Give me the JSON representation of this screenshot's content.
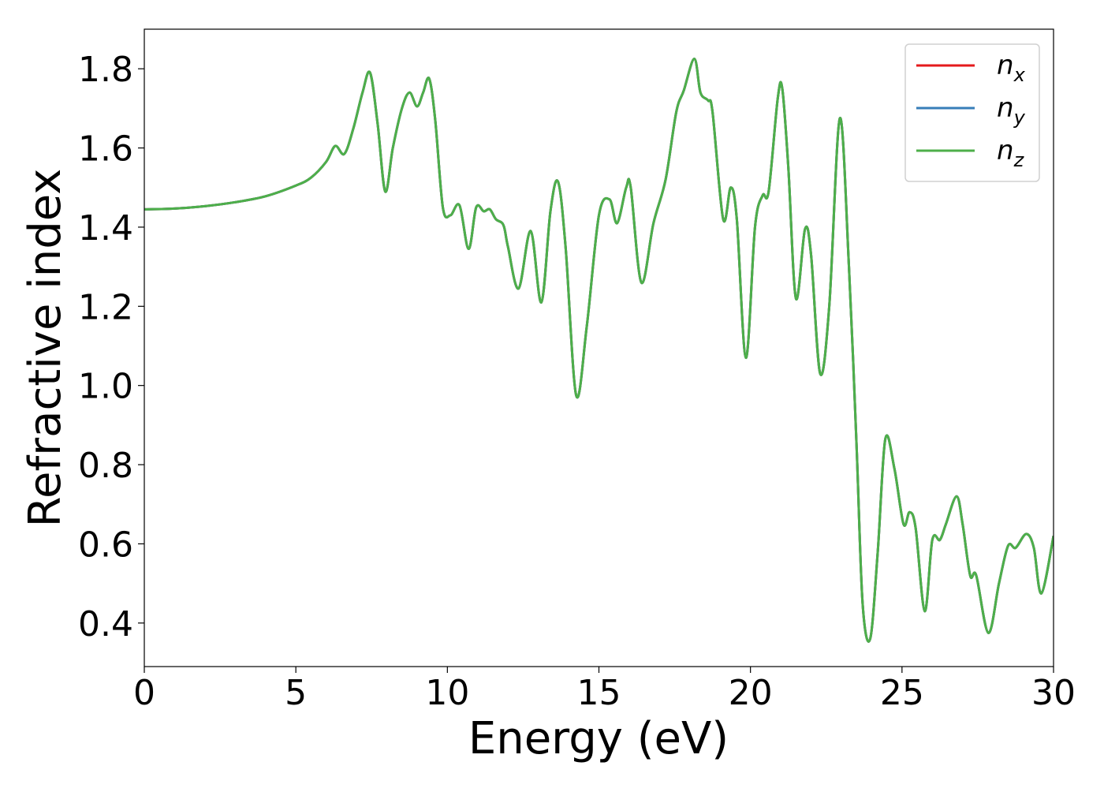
{
  "chart_data": {
    "type": "line",
    "xlabel": "Energy (eV)",
    "ylabel": "Refractive index",
    "xlim": [
      0,
      30
    ],
    "ylim": [
      0.29,
      1.9
    ],
    "x_ticks": [
      0,
      5,
      10,
      15,
      20,
      25,
      30
    ],
    "y_ticks": [
      0.4,
      0.6,
      0.8,
      1.0,
      1.2,
      1.4,
      1.6,
      1.8
    ],
    "grid": false,
    "legend_position": "top-right",
    "series": [
      {
        "name_base": "n",
        "name_sub": "x",
        "color": "#e41a1c"
      },
      {
        "name_base": "n",
        "name_sub": "y",
        "color": "#377eb8"
      },
      {
        "name_base": "n",
        "name_sub": "z",
        "color": "#4daf4a"
      }
    ],
    "curve": {
      "x": [
        0,
        1,
        2,
        3,
        4,
        5,
        5.5,
        6.0,
        6.3,
        6.6,
        6.9,
        7.2,
        7.45,
        7.7,
        7.95,
        8.2,
        8.5,
        8.75,
        9.0,
        9.2,
        9.4,
        9.6,
        9.85,
        10.1,
        10.4,
        10.7,
        10.95,
        11.2,
        11.4,
        11.6,
        11.85,
        12.0,
        12.35,
        12.75,
        13.1,
        13.4,
        13.65,
        13.9,
        14.25,
        14.6,
        15.0,
        15.35,
        15.6,
        15.9,
        16.05,
        16.4,
        16.8,
        17.2,
        17.55,
        17.8,
        18.15,
        18.35,
        18.6,
        18.75,
        19.1,
        19.35,
        19.55,
        19.85,
        20.15,
        20.4,
        20.6,
        20.9,
        21.05,
        21.25,
        21.5,
        21.8,
        22.0,
        22.3,
        22.6,
        22.95,
        23.25,
        23.5,
        23.7,
        23.95,
        24.2,
        24.45,
        24.75,
        25.05,
        25.25,
        25.45,
        25.75,
        26.0,
        26.25,
        26.45,
        26.8,
        27.0,
        27.25,
        27.45,
        27.85,
        28.2,
        28.5,
        28.75,
        29.1,
        29.35,
        29.6,
        30.0
      ],
      "y": [
        1.445,
        1.447,
        1.453,
        1.463,
        1.478,
        1.505,
        1.525,
        1.565,
        1.605,
        1.585,
        1.65,
        1.74,
        1.79,
        1.66,
        1.49,
        1.6,
        1.7,
        1.74,
        1.705,
        1.74,
        1.775,
        1.67,
        1.45,
        1.43,
        1.455,
        1.345,
        1.45,
        1.44,
        1.445,
        1.42,
        1.405,
        1.35,
        1.245,
        1.39,
        1.21,
        1.44,
        1.515,
        1.35,
        0.975,
        1.15,
        1.43,
        1.47,
        1.41,
        1.5,
        1.5,
        1.26,
        1.41,
        1.52,
        1.69,
        1.745,
        1.825,
        1.74,
        1.72,
        1.69,
        1.42,
        1.5,
        1.42,
        1.07,
        1.4,
        1.48,
        1.49,
        1.725,
        1.75,
        1.55,
        1.22,
        1.395,
        1.33,
        1.03,
        1.2,
        1.675,
        1.3,
        0.85,
        0.45,
        0.36,
        0.58,
        0.865,
        0.79,
        0.65,
        0.68,
        0.64,
        0.43,
        0.61,
        0.61,
        0.65,
        0.72,
        0.65,
        0.52,
        0.52,
        0.375,
        0.5,
        0.595,
        0.59,
        0.625,
        0.59,
        0.475,
        0.62
      ]
    }
  }
}
